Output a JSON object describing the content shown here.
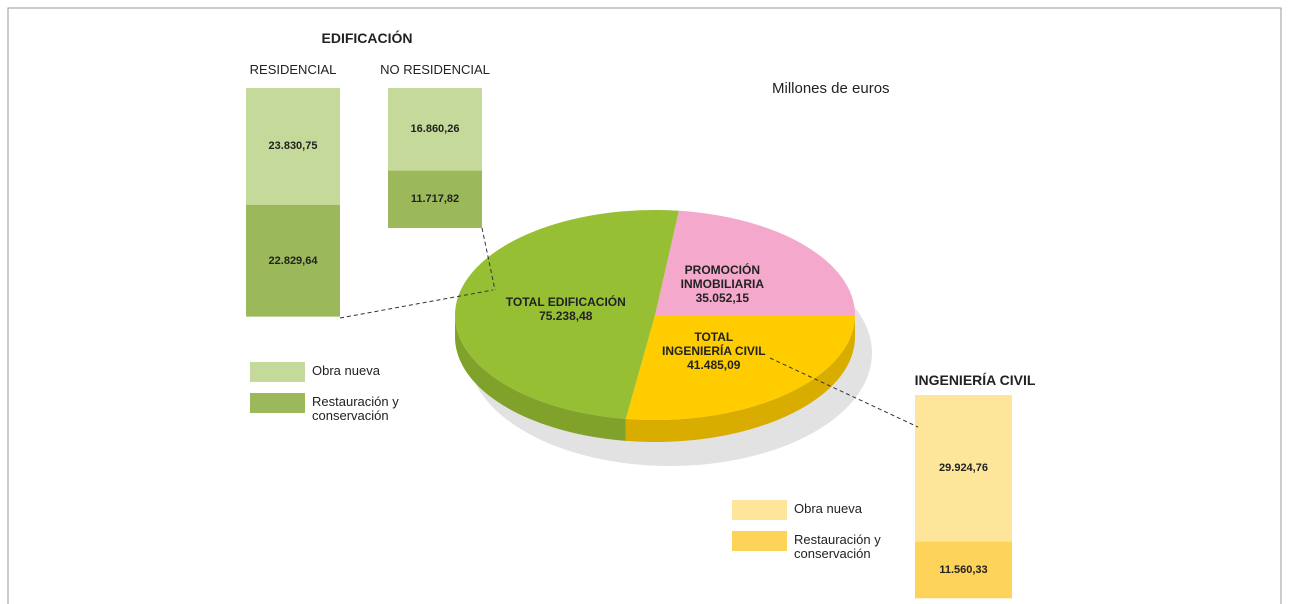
{
  "chart_data": [
    {
      "type": "pie",
      "subtitle": "Millones de euros",
      "categories": [
        "PROMOCIÓN INMOBILIARIA",
        "TOTAL INGENIERÍA CIVIL",
        "TOTAL EDIFICACIÓN"
      ],
      "values": [
        35052.15,
        41485.09,
        75238.48
      ],
      "value_labels": [
        "35.052,15",
        "41.485,09",
        "75.238,48"
      ],
      "colors": [
        "#f4a9cc",
        "#ffcc00",
        "#97bf33"
      ]
    },
    {
      "type": "bar",
      "stacked": true,
      "title": "EDIFICACIÓN",
      "categories": [
        "RESIDENCIAL",
        "NO RESIDENCIAL"
      ],
      "series": [
        {
          "name": "Obra nueva",
          "color": "#c5da9a",
          "values": [
            23830.75,
            16860.26
          ],
          "value_labels": [
            "23.830,75",
            "16.860,26"
          ]
        },
        {
          "name": "Restauración y conservación",
          "color": "#9bb85a",
          "values": [
            22829.64,
            11717.82
          ],
          "value_labels": [
            "22.829,64",
            "11.717,82"
          ]
        }
      ]
    },
    {
      "type": "bar",
      "stacked": true,
      "title": "INGENIERÍA CIVIL",
      "series": [
        {
          "name": "Obra nueva",
          "color": "#fde59a",
          "values": [
            29924.76
          ],
          "value_labels": [
            "29.924,76"
          ]
        },
        {
          "name": "Restauración y conservación",
          "color": "#fdd35a",
          "values": [
            11560.33
          ],
          "value_labels": [
            "11.560,33"
          ]
        }
      ]
    }
  ]
}
